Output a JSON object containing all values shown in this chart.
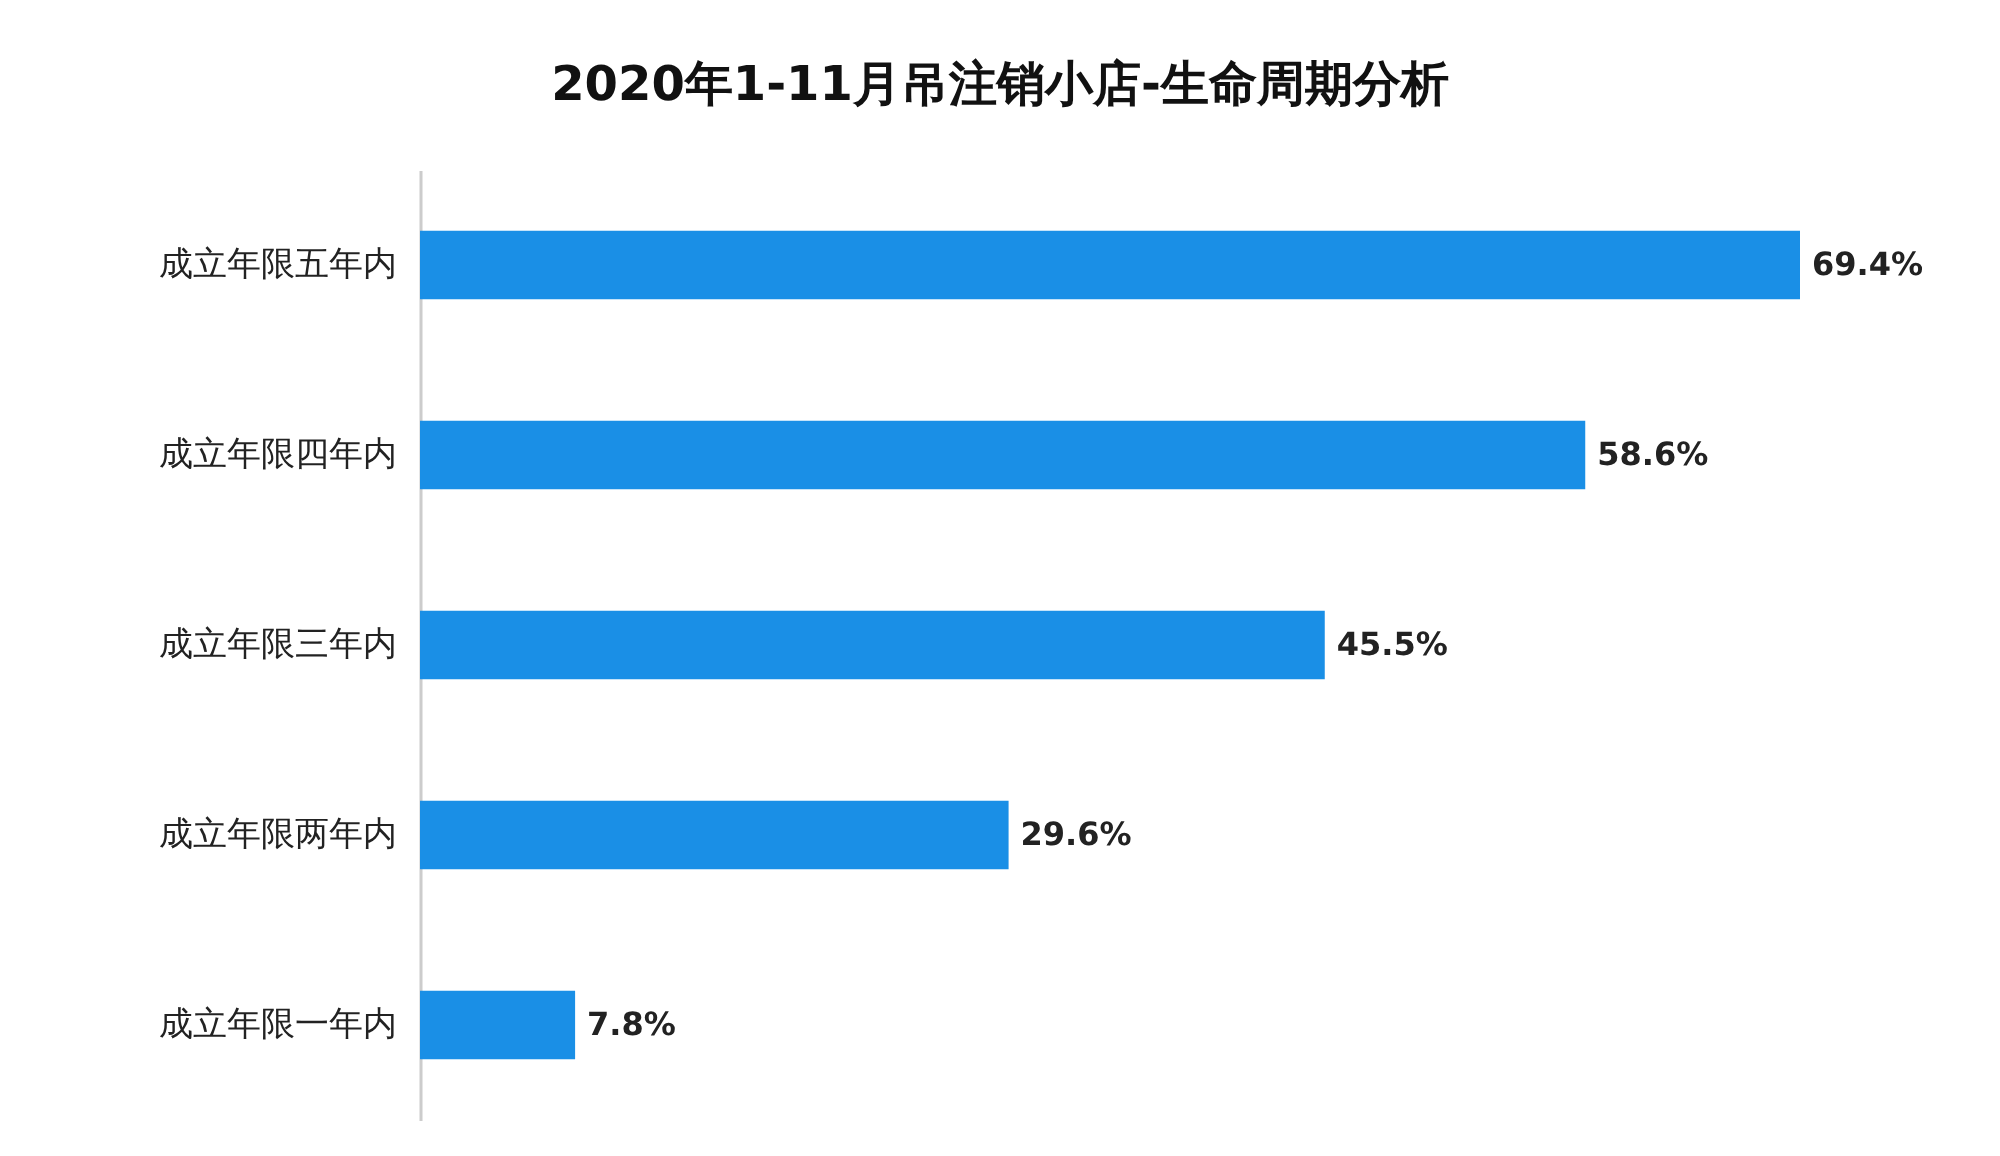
{
  "chart_data": {
    "type": "bar",
    "orientation": "horizontal",
    "title": "2020年1-11月吊注销小店-生命周期分析",
    "categories": [
      "成立年限五年内",
      "成立年限四年内",
      "成立年限三年内",
      "成立年限两年内",
      "成立年限一年内"
    ],
    "values": [
      69.4,
      58.6,
      45.5,
      29.6,
      7.8
    ],
    "value_labels": [
      "69.4%",
      "58.6%",
      "45.5%",
      "29.6%",
      "7.8%"
    ],
    "color": "#1a8fe6"
  }
}
